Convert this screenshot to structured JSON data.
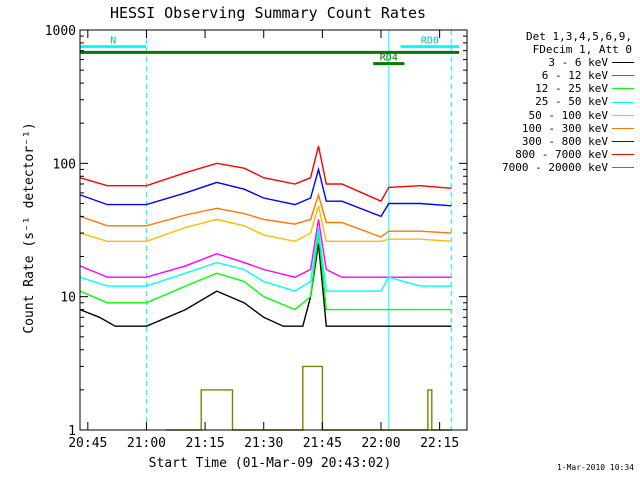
{
  "chart_data": {
    "type": "line",
    "title": "HESSI Observing Summary Count Rates",
    "xlabel": "Start Time (01-Mar-09 20:43:02)",
    "ylabel": "Count Rate (s⁻¹ detector⁻¹)",
    "yscale": "log",
    "ylim": [
      1,
      1000
    ],
    "xlim": [
      "20:43",
      "22:22"
    ],
    "x_ticks": [
      "20:45",
      "21:00",
      "21:15",
      "21:30",
      "21:45",
      "22:00",
      "22:15"
    ],
    "y_ticks": [
      "1",
      "10",
      "100",
      "1000"
    ],
    "legend_header": [
      "Det 1,3,4,5,6,9,",
      "FDecim 1, Att 0"
    ],
    "series": [
      {
        "name": "3 - 6 keV",
        "color": "#000000",
        "x": [
          "20:43",
          "20:48",
          "20:52",
          "21:00",
          "21:10",
          "21:18",
          "21:25",
          "21:30",
          "21:35",
          "21:40",
          "21:42",
          "21:44",
          "21:46",
          "21:50",
          "22:00",
          "22:10",
          "22:18"
        ],
        "values": [
          8,
          7,
          6,
          6,
          8,
          11,
          9,
          7,
          6,
          6,
          10,
          25,
          6,
          6,
          6,
          6,
          6
        ]
      },
      {
        "name": "6 - 12 keV",
        "color": "#ff00ff",
        "x": [
          "20:43",
          "20:50",
          "21:00",
          "21:10",
          "21:18",
          "21:25",
          "21:30",
          "21:38",
          "21:42",
          "21:44",
          "21:46",
          "21:50",
          "22:00",
          "22:10",
          "22:18"
        ],
        "values": [
          17,
          14,
          14,
          17,
          21,
          18,
          16,
          14,
          16,
          38,
          16,
          14,
          14,
          14,
          14
        ]
      },
      {
        "name": "12 - 25 keV",
        "color": "#00ff00",
        "x": [
          "20:43",
          "20:50",
          "21:00",
          "21:10",
          "21:18",
          "21:25",
          "21:30",
          "21:38",
          "21:42",
          "21:44",
          "21:46",
          "21:50",
          "22:00",
          "22:10",
          "22:18"
        ],
        "values": [
          11,
          9,
          9,
          12,
          15,
          13,
          10,
          8,
          10,
          30,
          8,
          8,
          8,
          8,
          8
        ]
      },
      {
        "name": "25 - 50 keV",
        "color": "#00ffff",
        "x": [
          "20:43",
          "20:50",
          "21:00",
          "21:10",
          "21:18",
          "21:25",
          "21:30",
          "21:38",
          "21:42",
          "21:44",
          "21:46",
          "21:50",
          "22:00",
          "22:02",
          "22:10",
          "22:18"
        ],
        "values": [
          14,
          12,
          12,
          15,
          18,
          16,
          13,
          11,
          13,
          33,
          11,
          11,
          11,
          14,
          12,
          12
        ]
      },
      {
        "name": "50 - 100 keV",
        "color": "#ffbb00",
        "x": [
          "20:43",
          "20:50",
          "21:00",
          "21:10",
          "21:18",
          "21:25",
          "21:30",
          "21:38",
          "21:42",
          "21:44",
          "21:46",
          "21:50",
          "22:00",
          "22:02",
          "22:10",
          "22:18"
        ],
        "values": [
          30,
          26,
          26,
          33,
          38,
          34,
          29,
          26,
          30,
          48,
          26,
          26,
          26,
          27,
          27,
          26
        ]
      },
      {
        "name": "100 - 300 keV",
        "color": "#ff7700",
        "x": [
          "20:43",
          "20:50",
          "21:00",
          "21:10",
          "21:18",
          "21:25",
          "21:30",
          "21:38",
          "21:42",
          "21:44",
          "21:46",
          "21:50",
          "22:00",
          "22:02",
          "22:10",
          "22:18"
        ],
        "values": [
          40,
          34,
          34,
          41,
          46,
          42,
          38,
          35,
          38,
          58,
          36,
          36,
          28,
          31,
          31,
          30
        ]
      },
      {
        "name": "300 - 800 keV",
        "color": "#0000ff",
        "x": [
          "20:43",
          "20:50",
          "21:00",
          "21:10",
          "21:18",
          "21:25",
          "21:30",
          "21:38",
          "21:42",
          "21:44",
          "21:46",
          "21:50",
          "22:00",
          "22:02",
          "22:10",
          "22:18"
        ],
        "values": [
          58,
          49,
          49,
          60,
          72,
          64,
          55,
          49,
          55,
          90,
          52,
          52,
          40,
          50,
          50,
          48
        ]
      },
      {
        "name": "800 - 7000 keV",
        "color": "#ff0000",
        "x": [
          "20:43",
          "20:50",
          "21:00",
          "21:10",
          "21:18",
          "21:25",
          "21:30",
          "21:38",
          "21:42",
          "21:44",
          "21:46",
          "21:50",
          "22:00",
          "22:02",
          "22:10",
          "22:18"
        ],
        "values": [
          78,
          68,
          68,
          85,
          100,
          92,
          78,
          70,
          78,
          135,
          70,
          70,
          52,
          66,
          68,
          65
        ]
      },
      {
        "name": "7000 - 20000 keV",
        "color": "#808000",
        "x": [
          "21:05",
          "21:14",
          "21:14",
          "21:22",
          "21:22",
          "21:40",
          "21:40",
          "21:45",
          "21:45",
          "22:12",
          "22:12",
          "22:13",
          "22:13",
          "22:18"
        ],
        "values": [
          1,
          1,
          2,
          2,
          1,
          1,
          3,
          3,
          1,
          1,
          2,
          2,
          1,
          1
        ]
      }
    ],
    "annotations": [
      {
        "label": "N",
        "color": "#00ffff",
        "level": 750,
        "x_start": "20:43",
        "x_end": "21:00"
      },
      {
        "label": "RD0",
        "color": "#00ffff",
        "level": 750,
        "x_start": "22:05",
        "x_end": "22:20"
      },
      {
        "label": "RD4",
        "color": "#007700",
        "level": 560,
        "x_start": "21:58",
        "x_end": "22:06"
      },
      {
        "label": "",
        "color": "#007700",
        "level": 680,
        "x_start": "20:43",
        "x_end": "22:20"
      }
    ],
    "vertical_markers": [
      {
        "x": "20:43",
        "style": "solid",
        "color": "#00ffff"
      },
      {
        "x": "21:00",
        "style": "dashed",
        "color": "#00ffff"
      },
      {
        "x": "22:02",
        "style": "solid",
        "color": "#00ffff"
      },
      {
        "x": "22:18",
        "style": "dashed",
        "color": "#00ffff"
      }
    ],
    "grid": false,
    "legend_position": "right"
  },
  "timestamp": "1-Mar-2010 10:34"
}
